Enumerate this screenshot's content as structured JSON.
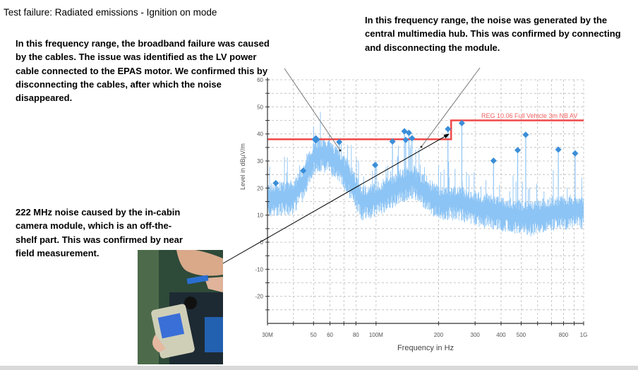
{
  "title": "Test failure: Radiated emissions - Ignition on mode",
  "notes": {
    "broadband": "In this frequency range, the broadband failure was caused by the cables. The issue was identified as the LV power cable connected to the EPAS motor. We confirmed this by disconnecting the cables, after which the noise disappeared.",
    "multimedia": "In this frequency range, the noise was generated by the central multimedia hub. This was confirmed by connecting and disconnecting the module.",
    "camera": "222 MHz noise caused by the in-cabin camera module, which is an off-the-shelf part. This was confirmed by near field measurement."
  },
  "chart_data": {
    "type": "line",
    "xlabel": "Frequency in Hz",
    "ylabel": "Level in dBµV/m",
    "x_scale": "log",
    "xlim": [
      30,
      1000
    ],
    "ylim": [
      -30,
      60
    ],
    "grid": true,
    "x_ticks": [
      {
        "v": 30,
        "label": "30M"
      },
      {
        "v": 40,
        "label": ""
      },
      {
        "v": 50,
        "label": "50"
      },
      {
        "v": 60,
        "label": "60"
      },
      {
        "v": 70,
        "label": ""
      },
      {
        "v": 80,
        "label": "80"
      },
      {
        "v": 100,
        "label": "100M"
      },
      {
        "v": 200,
        "label": "200"
      },
      {
        "v": 300,
        "label": "300"
      },
      {
        "v": 400,
        "label": "400"
      },
      {
        "v": 500,
        "label": "500"
      },
      {
        "v": 600,
        "label": ""
      },
      {
        "v": 700,
        "label": ""
      },
      {
        "v": 800,
        "label": "800"
      },
      {
        "v": 900,
        "label": ""
      },
      {
        "v": 1000,
        "label": "1G"
      }
    ],
    "y_ticks": [
      {
        "v": 60,
        "label": "60"
      },
      {
        "v": 50,
        "label": "50"
      },
      {
        "v": 40,
        "label": "40"
      },
      {
        "v": 30,
        "label": "30"
      },
      {
        "v": 20,
        "label": "20"
      },
      {
        "v": 10,
        "label": "10"
      },
      {
        "v": 0,
        "label": "0"
      },
      {
        "v": -10,
        "label": "-10"
      },
      {
        "v": -20,
        "label": "-20"
      }
    ],
    "limit_line": {
      "name": "REG 10.06 Full Vehicle 3m NB AV",
      "color": "#f04848",
      "points": [
        [
          30,
          38
        ],
        [
          230,
          38
        ],
        [
          230,
          45
        ],
        [
          1000,
          45
        ]
      ]
    },
    "trace_envelope": {
      "color": "#8cc4f5",
      "points": [
        [
          30,
          17
        ],
        [
          40,
          18
        ],
        [
          45,
          24
        ],
        [
          50,
          33
        ],
        [
          55,
          34
        ],
        [
          65,
          31
        ],
        [
          75,
          24
        ],
        [
          85,
          16
        ],
        [
          100,
          17
        ],
        [
          130,
          22
        ],
        [
          150,
          24
        ],
        [
          170,
          20
        ],
        [
          200,
          16
        ],
        [
          250,
          16
        ],
        [
          300,
          14
        ],
        [
          400,
          12
        ],
        [
          550,
          10
        ],
        [
          700,
          12
        ],
        [
          1000,
          13
        ]
      ]
    },
    "peaks": {
      "color": "#3a8ed8",
      "points": [
        [
          32.9,
          21.8
        ],
        [
          44.6,
          26.4
        ],
        [
          51.3,
          38
        ],
        [
          66.5,
          37
        ],
        [
          99,
          28.5
        ],
        [
          120,
          37.2
        ],
        [
          137,
          41
        ],
        [
          139,
          37.8
        ],
        [
          144,
          40.4
        ],
        [
          149,
          38.4
        ],
        [
          222,
          41.8
        ],
        [
          259,
          44
        ],
        [
          368,
          30.1
        ],
        [
          481,
          34
        ],
        [
          526,
          39.7
        ],
        [
          755,
          34.2
        ],
        [
          910,
          32.8
        ]
      ]
    }
  }
}
